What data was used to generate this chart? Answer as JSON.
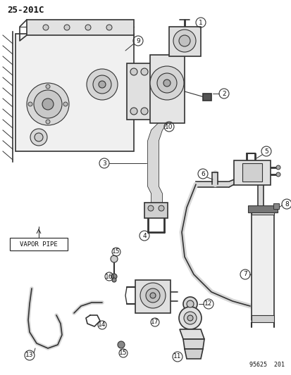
{
  "title_code": "25-201C",
  "footer_code": "95625  201",
  "bg_color": "#ffffff",
  "line_color": "#333333",
  "label_color": "#111111",
  "fig_width": 4.14,
  "fig_height": 5.33,
  "dpi": 100,
  "vapor_pipe_label": "VAPOR PIPE",
  "part_numbers": [
    1,
    2,
    3,
    4,
    5,
    6,
    7,
    8,
    9,
    10,
    11,
    12,
    13,
    14,
    15,
    16,
    17
  ]
}
